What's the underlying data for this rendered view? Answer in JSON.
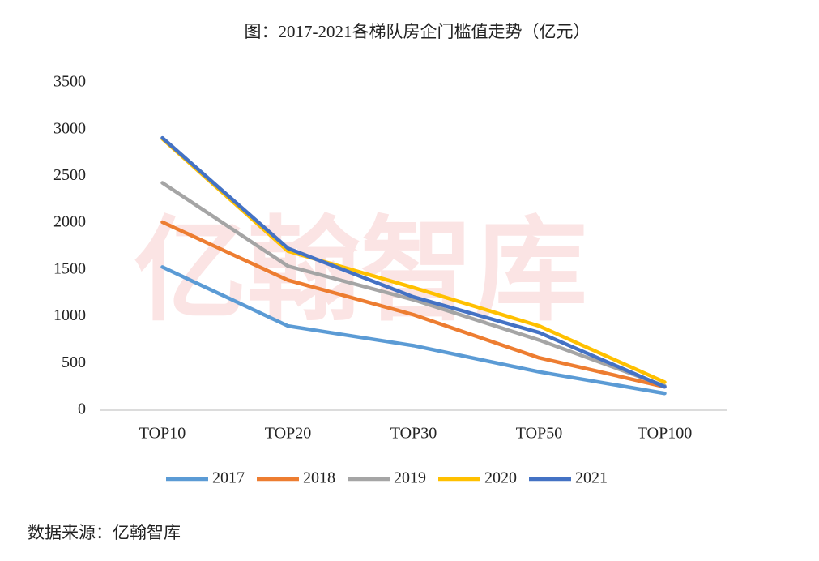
{
  "chart_data": {
    "type": "line",
    "title": "图：2017-2021各梯队房企门槛值走势（亿元）",
    "source": "数据来源：亿翰智库",
    "watermark": "亿翰智库",
    "categories": [
      "TOP10",
      "TOP20",
      "TOP30",
      "TOP50",
      "TOP100"
    ],
    "series": [
      {
        "name": "2017",
        "color": "#5b9bd5",
        "values": [
          1530,
          900,
          690,
          410,
          180
        ]
      },
      {
        "name": "2018",
        "color": "#ed7d31",
        "values": [
          2010,
          1390,
          1020,
          560,
          250
        ]
      },
      {
        "name": "2019",
        "color": "#a5a5a5",
        "values": [
          2430,
          1540,
          1180,
          750,
          260
        ]
      },
      {
        "name": "2020",
        "color": "#ffc000",
        "values": [
          2900,
          1700,
          1310,
          900,
          300
        ]
      },
      {
        "name": "2021",
        "color": "#4472c4",
        "values": [
          2910,
          1730,
          1210,
          830,
          250
        ]
      }
    ],
    "ylim": [
      0,
      3500
    ],
    "yticks": [
      0,
      500,
      1000,
      1500,
      2000,
      2500,
      3000,
      3500
    ],
    "grid": false,
    "legend": "bottom"
  }
}
